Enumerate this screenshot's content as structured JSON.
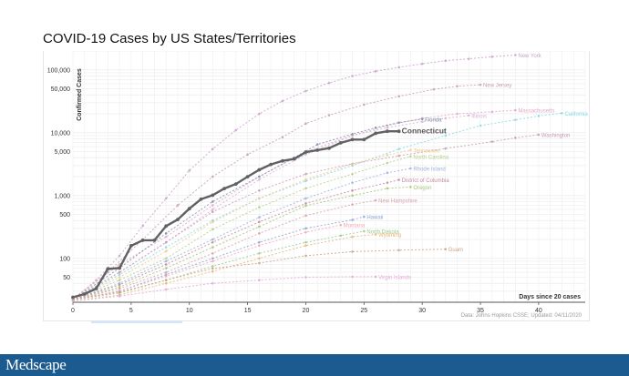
{
  "header": {
    "title": "COVID-19 Cases by US States/Territories"
  },
  "footer": {
    "brand": "Medscape"
  },
  "chart_data": {
    "type": "line",
    "title": "COVID-19 Cases by US States/Territories",
    "xlabel": "Days since 20 cases",
    "ylabel": "Confirmed Cases",
    "y_scale": "log",
    "xlim": [
      0,
      44
    ],
    "ylim": [
      20,
      200000
    ],
    "x_ticks": [
      0,
      5,
      10,
      15,
      20,
      25,
      30,
      35,
      40
    ],
    "y_ticks": [
      {
        "value": 50,
        "label": "50"
      },
      {
        "value": 100,
        "label": "100"
      },
      {
        "value": 500,
        "label": "500"
      },
      {
        "value": 1000,
        "label": "1,000"
      },
      {
        "value": 5000,
        "label": "5,000"
      },
      {
        "value": 10000,
        "label": "10,000"
      },
      {
        "value": 50000,
        "label": "50,000"
      },
      {
        "value": 100000,
        "label": "100,000"
      }
    ],
    "grid": true,
    "source": "Data: Johns Hopkins CSSE; Updated: 04/11/2020",
    "highlight": "Connecticut",
    "series": [
      {
        "name": "New York",
        "color": "#c9a3c9",
        "points": [
          [
            0,
            22
          ],
          [
            2,
            45
          ],
          [
            4,
            110
          ],
          [
            6,
            330
          ],
          [
            8,
            900
          ],
          [
            10,
            2500
          ],
          [
            12,
            5500
          ],
          [
            14,
            11000
          ],
          [
            16,
            20000
          ],
          [
            18,
            32000
          ],
          [
            20,
            46000
          ],
          [
            22,
            62000
          ],
          [
            24,
            80000
          ],
          [
            26,
            95000
          ],
          [
            28,
            110000
          ],
          [
            30,
            125000
          ],
          [
            32,
            140000
          ],
          [
            34,
            150000
          ],
          [
            36,
            162000
          ],
          [
            38,
            172000
          ]
        ]
      },
      {
        "name": "New Jersey",
        "color": "#c4a0b4",
        "points": [
          [
            0,
            22
          ],
          [
            3,
            60
          ],
          [
            6,
            200
          ],
          [
            9,
            700
          ],
          [
            12,
            2000
          ],
          [
            15,
            4500
          ],
          [
            18,
            8500
          ],
          [
            20,
            14000
          ],
          [
            22,
            19000
          ],
          [
            25,
            28000
          ],
          [
            28,
            38000
          ],
          [
            31,
            49000
          ],
          [
            33,
            55000
          ],
          [
            35,
            58000
          ]
        ]
      },
      {
        "name": "Massachusetts",
        "color": "#e0a7c8",
        "points": [
          [
            0,
            23
          ],
          [
            4,
            80
          ],
          [
            8,
            220
          ],
          [
            12,
            700
          ],
          [
            16,
            2000
          ],
          [
            20,
            5000
          ],
          [
            24,
            9000
          ],
          [
            27,
            13000
          ],
          [
            30,
            17000
          ],
          [
            33,
            20000
          ],
          [
            36,
            21500
          ],
          [
            38,
            22800
          ]
        ]
      },
      {
        "name": "Illinois",
        "color": "#d9b1d8",
        "points": [
          [
            0,
            22
          ],
          [
            4,
            60
          ],
          [
            8,
            180
          ],
          [
            12,
            600
          ],
          [
            16,
            1800
          ],
          [
            20,
            4500
          ],
          [
            24,
            9000
          ],
          [
            27,
            12000
          ],
          [
            30,
            15000
          ],
          [
            32,
            17000
          ],
          [
            34,
            18800
          ]
        ]
      },
      {
        "name": "Florida",
        "color": "#7d8fa8",
        "points": [
          [
            0,
            22
          ],
          [
            4,
            70
          ],
          [
            8,
            250
          ],
          [
            12,
            800
          ],
          [
            16,
            2000
          ],
          [
            19,
            4000
          ],
          [
            21,
            6500
          ],
          [
            24,
            9500
          ],
          [
            26,
            12000
          ],
          [
            28,
            14500
          ],
          [
            30,
            16500
          ]
        ]
      },
      {
        "name": "California",
        "color": "#86d9e8",
        "points": [
          [
            0,
            22
          ],
          [
            4,
            55
          ],
          [
            8,
            150
          ],
          [
            12,
            400
          ],
          [
            16,
            900
          ],
          [
            20,
            1700
          ],
          [
            24,
            3000
          ],
          [
            28,
            5500
          ],
          [
            32,
            9000
          ],
          [
            35,
            13000
          ],
          [
            38,
            16000
          ],
          [
            40,
            18500
          ],
          [
            42,
            20500
          ]
        ]
      },
      {
        "name": "Connecticut",
        "color": "#616161",
        "points": [
          [
            0,
            24
          ],
          [
            1,
            27
          ],
          [
            2,
            33
          ],
          [
            3,
            68
          ],
          [
            4,
            70
          ],
          [
            5,
            159
          ],
          [
            6,
            194
          ],
          [
            7,
            194
          ],
          [
            8,
            327
          ],
          [
            9,
            415
          ],
          [
            10,
            618
          ],
          [
            11,
            875
          ],
          [
            12,
            1012
          ],
          [
            13,
            1291
          ],
          [
            14,
            1524
          ],
          [
            15,
            1993
          ],
          [
            16,
            2571
          ],
          [
            17,
            3128
          ],
          [
            18,
            3557
          ],
          [
            19,
            3824
          ],
          [
            20,
            4914
          ],
          [
            21,
            5276
          ],
          [
            22,
            5675
          ],
          [
            23,
            6906
          ],
          [
            24,
            7781
          ],
          [
            25,
            7781
          ],
          [
            26,
            9784
          ],
          [
            27,
            10538
          ],
          [
            28,
            10538
          ]
        ]
      },
      {
        "name": "Washington",
        "color": "#c79bb4",
        "points": [
          [
            0,
            22
          ],
          [
            4,
            60
          ],
          [
            8,
            180
          ],
          [
            12,
            550
          ],
          [
            16,
            1200
          ],
          [
            20,
            2200
          ],
          [
            24,
            3200
          ],
          [
            28,
            4300
          ],
          [
            32,
            5600
          ],
          [
            36,
            7200
          ],
          [
            38,
            8300
          ],
          [
            40,
            9300
          ]
        ]
      },
      {
        "name": "Tennessee",
        "color": "#f0c98a",
        "points": [
          [
            0,
            22
          ],
          [
            4,
            50
          ],
          [
            8,
            130
          ],
          [
            12,
            380
          ],
          [
            16,
            900
          ],
          [
            20,
            1800
          ],
          [
            24,
            3200
          ],
          [
            27,
            4400
          ],
          [
            29,
            5300
          ]
        ]
      },
      {
        "name": "North Carolina",
        "color": "#b2d08a",
        "points": [
          [
            0,
            22
          ],
          [
            4,
            45
          ],
          [
            8,
            100
          ],
          [
            12,
            290
          ],
          [
            16,
            650
          ],
          [
            20,
            1300
          ],
          [
            24,
            2200
          ],
          [
            27,
            3300
          ],
          [
            29,
            4200
          ]
        ]
      },
      {
        "name": "Rhode Island",
        "color": "#9fb0d9",
        "points": [
          [
            0,
            22
          ],
          [
            4,
            40
          ],
          [
            8,
            90
          ],
          [
            12,
            200
          ],
          [
            16,
            450
          ],
          [
            20,
            900
          ],
          [
            24,
            1600
          ],
          [
            27,
            2300
          ],
          [
            29,
            2700
          ]
        ]
      },
      {
        "name": "District of Columbia",
        "color": "#c48aa0",
        "points": [
          [
            0,
            22
          ],
          [
            4,
            38
          ],
          [
            8,
            80
          ],
          [
            12,
            180
          ],
          [
            16,
            380
          ],
          [
            20,
            750
          ],
          [
            24,
            1200
          ],
          [
            27,
            1600
          ],
          [
            28,
            1780
          ]
        ]
      },
      {
        "name": "Oregon",
        "color": "#a6c47b",
        "points": [
          [
            0,
            22
          ],
          [
            4,
            35
          ],
          [
            8,
            70
          ],
          [
            12,
            150
          ],
          [
            16,
            320
          ],
          [
            20,
            690
          ],
          [
            24,
            1000
          ],
          [
            27,
            1300
          ],
          [
            29,
            1370
          ]
        ]
      },
      {
        "name": "New Hampshire",
        "color": "#d8a1aa",
        "points": [
          [
            0,
            22
          ],
          [
            4,
            33
          ],
          [
            8,
            60
          ],
          [
            12,
            120
          ],
          [
            16,
            250
          ],
          [
            20,
            480
          ],
          [
            24,
            720
          ],
          [
            26,
            840
          ]
        ]
      },
      {
        "name": "Hawaii",
        "color": "#8ea5d1",
        "points": [
          [
            0,
            22
          ],
          [
            4,
            30
          ],
          [
            8,
            55
          ],
          [
            12,
            100
          ],
          [
            16,
            180
          ],
          [
            20,
            300
          ],
          [
            24,
            410
          ],
          [
            25,
            460
          ]
        ]
      },
      {
        "name": "Montana",
        "color": "#f2a7b6",
        "points": [
          [
            0,
            22
          ],
          [
            4,
            30
          ],
          [
            8,
            52
          ],
          [
            12,
            90
          ],
          [
            16,
            160
          ],
          [
            20,
            260
          ],
          [
            23,
            340
          ]
        ]
      },
      {
        "name": "North Dakota",
        "color": "#9acb8e",
        "points": [
          [
            0,
            22
          ],
          [
            4,
            28
          ],
          [
            8,
            45
          ],
          [
            12,
            75
          ],
          [
            16,
            120
          ],
          [
            20,
            180
          ],
          [
            23,
            230
          ],
          [
            25,
            270
          ]
        ]
      },
      {
        "name": "Wyoming",
        "color": "#e8b477",
        "points": [
          [
            0,
            21
          ],
          [
            4,
            26
          ],
          [
            8,
            40
          ],
          [
            12,
            62
          ],
          [
            16,
            100
          ],
          [
            20,
            160
          ],
          [
            24,
            220
          ],
          [
            26,
            240
          ]
        ]
      },
      {
        "name": "Guam",
        "color": "#c8a58a",
        "points": [
          [
            0,
            22
          ],
          [
            4,
            29
          ],
          [
            8,
            45
          ],
          [
            12,
            69
          ],
          [
            16,
            84
          ],
          [
            20,
            110
          ],
          [
            24,
            128
          ],
          [
            28,
            135
          ],
          [
            32,
            140
          ]
        ]
      },
      {
        "name": "Virgin Islands",
        "color": "#e7a6d7",
        "points": [
          [
            0,
            21
          ],
          [
            4,
            25
          ],
          [
            8,
            32
          ],
          [
            12,
            40
          ],
          [
            16,
            45
          ],
          [
            20,
            50
          ],
          [
            24,
            51
          ],
          [
            26,
            51
          ]
        ]
      }
    ]
  }
}
